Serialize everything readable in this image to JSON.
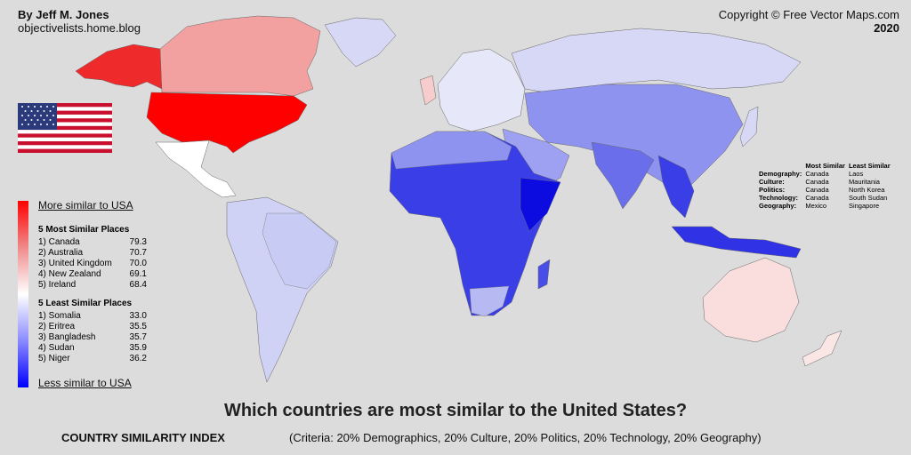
{
  "header": {
    "author": "By Jeff M. Jones",
    "blog": "objectivelists.home.blog",
    "copyright": "Copyright © Free Vector Maps.com",
    "year": "2020"
  },
  "legend": {
    "top_label": "More similar to USA",
    "bottom_label": "Less similar to USA",
    "gradient_colors": [
      "#ff0000",
      "#f08a8a",
      "#ffffff",
      "#8a8aff",
      "#0000ff"
    ]
  },
  "most_similar": {
    "title": "5 Most Similar Places",
    "items": [
      {
        "name": "1) Canada",
        "score": "79.3"
      },
      {
        "name": "2) Australia",
        "score": "70.7"
      },
      {
        "name": "3) United Kingdom",
        "score": "70.0"
      },
      {
        "name": "4) New Zealand",
        "score": "69.1"
      },
      {
        "name": "5) Ireland",
        "score": "68.4"
      }
    ]
  },
  "least_similar": {
    "title": "5 Least Similar Places",
    "items": [
      {
        "name": "1) Somalia",
        "score": "33.0"
      },
      {
        "name": "2) Eritrea",
        "score": "35.5"
      },
      {
        "name": "3) Bangladesh",
        "score": "35.7"
      },
      {
        "name": "4) Sudan",
        "score": "35.9"
      },
      {
        "name": "5) Niger",
        "score": "36.2"
      }
    ]
  },
  "category_table": {
    "headers": [
      "",
      "Most Similar",
      "Least Similar"
    ],
    "rows": [
      {
        "category": "Demography:",
        "most": "Canada",
        "least": "Laos"
      },
      {
        "category": "Culture:",
        "most": "Canada",
        "least": "Mauritania"
      },
      {
        "category": "Politics:",
        "most": "Canada",
        "least": "North Korea"
      },
      {
        "category": "Technology:",
        "most": "Canada",
        "least": "South Sudan"
      },
      {
        "category": "Geography:",
        "most": "Mexico",
        "least": "Singapore"
      }
    ]
  },
  "footer": {
    "title": "Which countries are most similar to the United States?",
    "index_label": "COUNTRY SIMILARITY INDEX",
    "criteria": "(Criteria: 20% Demographics, 20% Culture, 20% Politics, 20% Technology, 20% Geography)"
  },
  "colors": {
    "background": "#dcdcdc",
    "usa": "#ff0000",
    "canada": "#f2a0a0",
    "australia": "#fadede",
    "light_blue": "#d6d8f6",
    "mid_blue": "#8c90f0",
    "deep_blue": "#1a1ae6"
  }
}
